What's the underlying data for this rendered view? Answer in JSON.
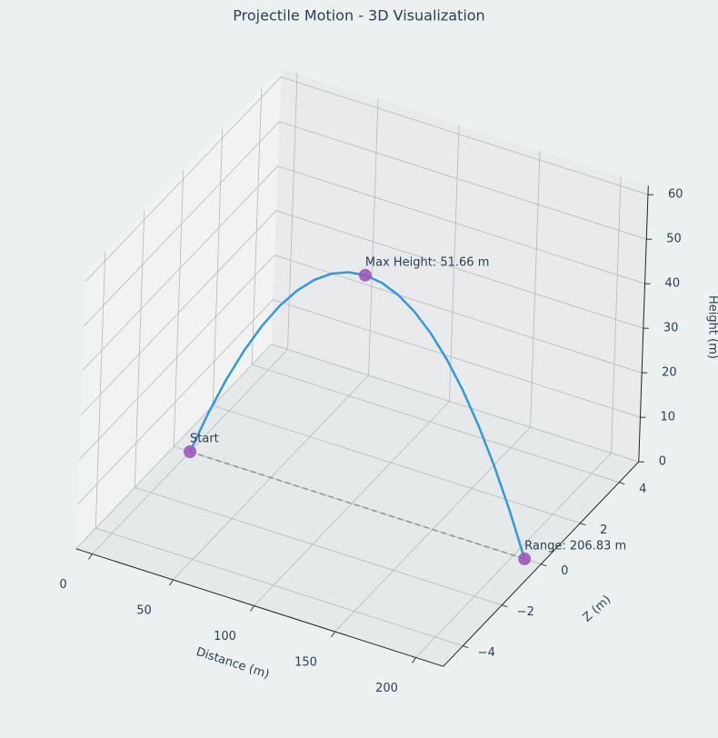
{
  "chart_data": {
    "type": "line3d",
    "title": "Projectile Motion - 3D Visualization",
    "xlabel": "Distance (m)",
    "zlabel": "Z (m)",
    "ylabel": "Height (m)",
    "xlim": [
      -10,
      217
    ],
    "zlim": [
      -5,
      5
    ],
    "ylim": [
      0,
      62
    ],
    "xticks": [
      0,
      50,
      100,
      150,
      200
    ],
    "zticks": [
      {
        "value": -4,
        "label": "−4"
      },
      {
        "value": -2,
        "label": "−2"
      },
      0,
      2,
      4
    ],
    "yticks": [
      0,
      10,
      20,
      30,
      40,
      50,
      60
    ],
    "grid": true,
    "series": [
      {
        "color": "#3498db",
        "x": [
          0,
          10.34,
          20.68,
          31.02,
          41.37,
          51.71,
          62.05,
          72.4,
          82.73,
          93.07,
          103.42,
          113.76,
          124.1,
          134.44,
          144.78,
          155.12,
          165.5,
          175.81,
          186.15,
          196.49,
          206.83
        ],
        "z": [
          0,
          0,
          0,
          0,
          0,
          0,
          0,
          0,
          0,
          0,
          0,
          0,
          0,
          0,
          0,
          0,
          0,
          0,
          0,
          0,
          0
        ],
        "values": [
          0,
          9.82,
          18.6,
          26.35,
          33.06,
          38.75,
          43.39,
          47.01,
          49.59,
          51.14,
          51.66,
          51.14,
          49.59,
          47.01,
          43.39,
          38.75,
          33.06,
          26.35,
          18.6,
          9.82,
          0
        ]
      }
    ],
    "markers": [
      {
        "x": 0,
        "z": 0,
        "y": 0,
        "label": "Start"
      },
      {
        "x": 103.42,
        "z": 0,
        "y": 51.66,
        "label": "Max Height: 51.66 m"
      },
      {
        "x": 206.83,
        "z": 0,
        "y": 0,
        "label": "Range: 206.83 m"
      }
    ],
    "marker_color": "#9b59b6",
    "ground_line_color": "#8e9599"
  }
}
